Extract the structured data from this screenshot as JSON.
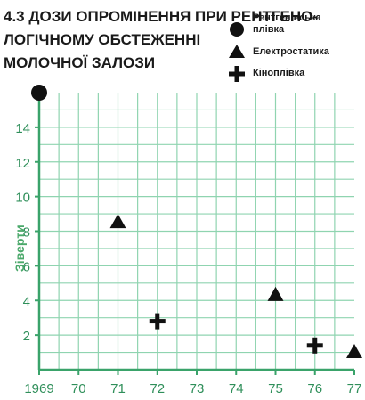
{
  "title_lines": [
    "4.3 ДОЗИ ОПРОМІНЕННЯ ПРИ РЕНТГЕНО-",
    "ЛОГІЧНОМУ ОБСТЕЖЕННІ",
    "МОЛОЧНОЇ ЗАЛОЗИ"
  ],
  "legend": [
    {
      "label_lines": [
        "Рентгенівська",
        "плівка"
      ],
      "marker": "circle"
    },
    {
      "label_lines": [
        "Електростатика"
      ],
      "marker": "triangle"
    },
    {
      "label_lines": [
        "Кіноплівка"
      ],
      "marker": "plus"
    }
  ],
  "colors": {
    "grid": "#8fd4b0",
    "axis": "#3aa36a",
    "tick_label": "#2f8f5a",
    "marker": "#111111",
    "plot_bg": "#ffffff"
  },
  "chart_data": {
    "type": "scatter",
    "ylabel": "Зіверти",
    "xlabel": "",
    "xlim": [
      1969,
      77
    ],
    "ylim": [
      0,
      16
    ],
    "x_ticks": [
      {
        "value": 1969,
        "label": "1969"
      },
      {
        "value": 1970,
        "label": "70"
      },
      {
        "value": 1971,
        "label": "71"
      },
      {
        "value": 1972,
        "label": "72"
      },
      {
        "value": 1973,
        "label": "73"
      },
      {
        "value": 1974,
        "label": "74"
      },
      {
        "value": 1975,
        "label": "75"
      },
      {
        "value": 1976,
        "label": "76"
      },
      {
        "value": 1977,
        "label": "77"
      }
    ],
    "y_ticks": [
      2,
      4,
      6,
      8,
      10,
      12,
      14
    ],
    "grid": true,
    "series": [
      {
        "name": "Рентгенівська плівка",
        "marker": "circle",
        "points": [
          {
            "x": 1969,
            "y": 16
          }
        ]
      },
      {
        "name": "Електростатика",
        "marker": "triangle",
        "points": [
          {
            "x": 1971,
            "y": 8.5
          },
          {
            "x": 1975,
            "y": 4.3
          },
          {
            "x": 1977,
            "y": 1.0
          }
        ]
      },
      {
        "name": "Кіноплівка",
        "marker": "plus",
        "points": [
          {
            "x": 1972,
            "y": 2.8
          },
          {
            "x": 1976,
            "y": 1.4
          }
        ]
      }
    ]
  }
}
